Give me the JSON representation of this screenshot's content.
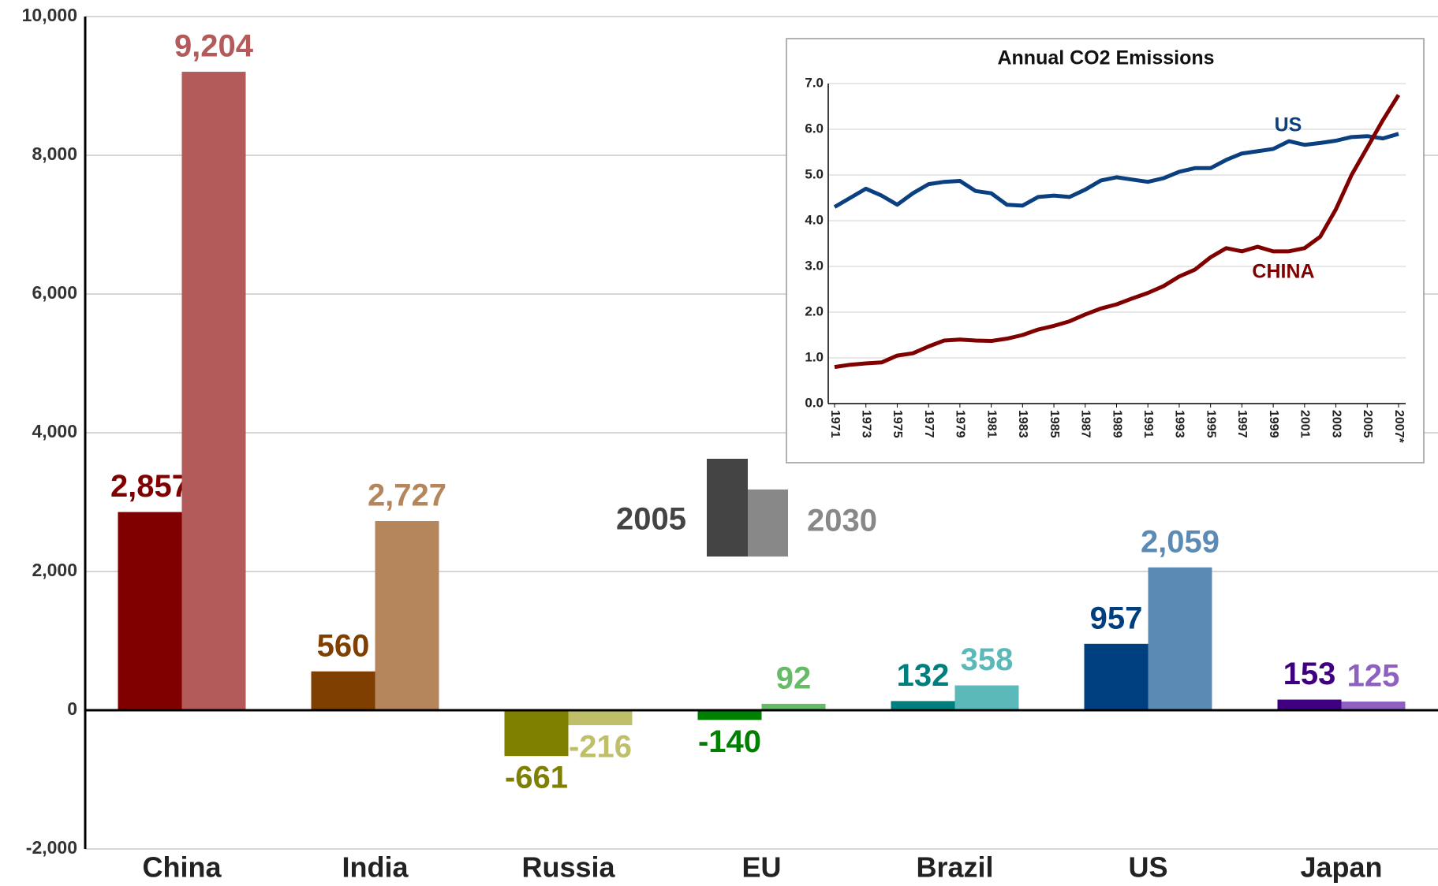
{
  "chart_data": [
    {
      "type": "bar",
      "categories": [
        "China",
        "India",
        "Russia",
        "EU",
        "Brazil",
        "US",
        "Japan"
      ],
      "series": [
        {
          "name": "2005",
          "color": "#444444",
          "colors": [
            "#800000",
            "#7f3f00",
            "#7f7f00",
            "#008000",
            "#007f7f",
            "#003f7f",
            "#3f007f"
          ],
          "values": [
            2857,
            560,
            -661,
            -140,
            132,
            957,
            153
          ],
          "value_labels": [
            "2,857",
            "560",
            "-661",
            "-140",
            "132",
            "957",
            "153"
          ]
        },
        {
          "name": "2030",
          "color": "#888888",
          "colors": [
            "#b35a5a",
            "#b5865b",
            "#bfbf6a",
            "#66bb66",
            "#5bb9b9",
            "#5b8ab5",
            "#8e60c0"
          ],
          "values": [
            9204,
            2727,
            -216,
            92,
            358,
            2059,
            125
          ],
          "value_labels": [
            "9,204",
            "2,727",
            "-216",
            "92",
            "358",
            "2,059",
            "125"
          ]
        }
      ],
      "ylim": [
        -2000,
        10000
      ],
      "yticks": [
        {
          "value": -2000,
          "label": "-2,000"
        },
        0,
        {
          "value": 2000,
          "label": "2,000"
        },
        {
          "value": 4000,
          "label": "4,000"
        },
        {
          "value": 6000,
          "label": "6,000"
        },
        {
          "value": 8000,
          "label": "8,000"
        },
        {
          "value": 10000,
          "label": "10,000"
        }
      ],
      "grid": true
    },
    {
      "type": "line",
      "title": "Annual CO2 Emissions",
      "x": [
        1971,
        1972,
        1973,
        1974,
        1975,
        1976,
        1977,
        1978,
        1979,
        1980,
        1981,
        1982,
        1983,
        1984,
        1985,
        1986,
        1987,
        1988,
        1989,
        1990,
        1991,
        1992,
        1993,
        1994,
        1995,
        1996,
        1997,
        1998,
        1999,
        2000,
        2001,
        2002,
        2003,
        2004,
        2005,
        2006,
        2007
      ],
      "series": [
        {
          "name": "US",
          "color": "#0a3f80",
          "values": [
            4.3,
            4.5,
            4.7,
            4.55,
            4.35,
            4.6,
            4.8,
            4.85,
            4.87,
            4.65,
            4.6,
            4.35,
            4.33,
            4.52,
            4.55,
            4.52,
            4.68,
            4.88,
            4.95,
            4.9,
            4.85,
            4.93,
            5.07,
            5.15,
            5.15,
            5.33,
            5.47,
            5.52,
            5.57,
            5.74,
            5.66,
            5.7,
            5.75,
            5.83,
            5.85,
            5.8,
            5.9
          ]
        },
        {
          "name": "CHINA",
          "color": "#800000",
          "values": [
            0.8,
            0.85,
            0.88,
            0.9,
            1.05,
            1.1,
            1.25,
            1.38,
            1.4,
            1.38,
            1.37,
            1.42,
            1.5,
            1.62,
            1.7,
            1.8,
            1.95,
            2.08,
            2.17,
            2.3,
            2.42,
            2.57,
            2.78,
            2.93,
            3.2,
            3.4,
            3.33,
            3.43,
            3.33,
            3.33,
            3.4,
            3.65,
            4.25,
            5.0,
            5.6,
            6.2,
            6.75
          ]
        }
      ],
      "xlim": [
        1971,
        2007
      ],
      "xticks": [
        1971,
        1973,
        1975,
        1977,
        1979,
        1981,
        1983,
        1985,
        1987,
        1989,
        1991,
        1993,
        1995,
        1997,
        1999,
        2001,
        2003,
        2005,
        {
          "value": 2007,
          "label": "2007*"
        }
      ],
      "ylim": [
        0,
        7
      ],
      "yticks": [
        {
          "value": 0,
          "label": "0.0"
        },
        {
          "value": 1,
          "label": "1.0"
        },
        {
          "value": 2,
          "label": "2.0"
        },
        {
          "value": 3,
          "label": "3.0"
        },
        {
          "value": 4,
          "label": "4.0"
        },
        {
          "value": 5,
          "label": "5.0"
        },
        {
          "value": 6,
          "label": "6.0"
        },
        {
          "value": 7,
          "label": "7.0"
        }
      ],
      "grid": true
    }
  ]
}
